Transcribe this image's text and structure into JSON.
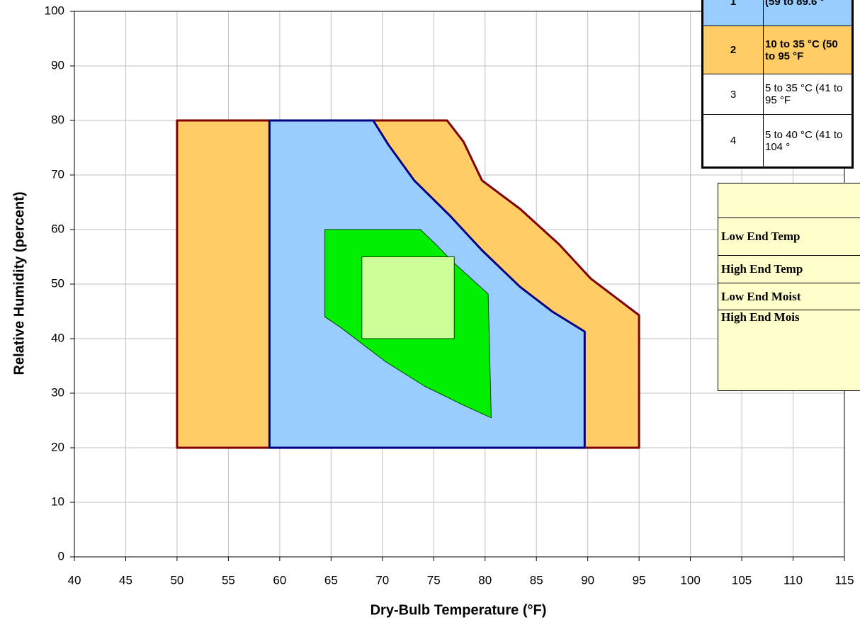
{
  "chart_data": {
    "type": "polygon",
    "xlabel": "Dry-Bulb Temperature (°F)",
    "ylabel": "Relative Humidity (percent)",
    "xlim": [
      40,
      115
    ],
    "ylim": [
      0,
      100
    ],
    "xticks": [
      40,
      45,
      50,
      55,
      60,
      65,
      70,
      75,
      80,
      85,
      90,
      95,
      100,
      105,
      110,
      115
    ],
    "yticks": [
      0,
      10,
      20,
      30,
      40,
      50,
      60,
      70,
      80,
      90,
      100
    ],
    "grid": true,
    "series": [
      {
        "color": "#800000",
        "fill": "#FFCC66",
        "x": [
          50,
          50,
          76.3,
          77.9,
          79.7,
          83.4,
          87.2,
          90.3,
          95,
          95
        ],
        "y": [
          20,
          80,
          80,
          76.1,
          69,
          63.8,
          57.3,
          51,
          44.3,
          20
        ]
      },
      {
        "color": "#000080",
        "fill": "#99CCFF",
        "x": [
          59,
          59,
          69.1,
          70.6,
          73.1,
          76.6,
          79.7,
          83.4,
          86.6,
          89.7,
          89.7
        ],
        "y": [
          20,
          80,
          80,
          75.5,
          69,
          62.5,
          56.2,
          49.5,
          44.9,
          41.3,
          20
        ]
      },
      {
        "color": "#004000",
        "fill": "#00EE00",
        "x": [
          64.4,
          73.7,
          75.2,
          76.9,
          80.3,
          80.6,
          77.9,
          74.1,
          70.3,
          65.9,
          64.4
        ],
        "y": [
          60,
          60,
          57.3,
          54,
          48.2,
          25.5,
          27.8,
          31.3,
          35.8,
          42.1,
          44
        ]
      },
      {
        "color": "#004000",
        "fill": "#CCFF99",
        "x": [
          68,
          68,
          77,
          77
        ],
        "y": [
          40,
          55,
          55,
          40
        ]
      }
    ]
  },
  "class_table": {
    "rows": [
      [
        "1",
        "(59 to 89.6 °"
      ],
      [
        "2",
        "10 to 35 °C (50 to 95 °F"
      ],
      [
        "3",
        "5 to 35 °C (41 to 95 °F"
      ],
      [
        "4",
        "5 to 40 °C (41 to 104 °"
      ]
    ]
  },
  "limits_table": {
    "rows": [
      "Low End Temp",
      "High End Temp",
      "Low End Moist",
      "High End Mois"
    ]
  }
}
